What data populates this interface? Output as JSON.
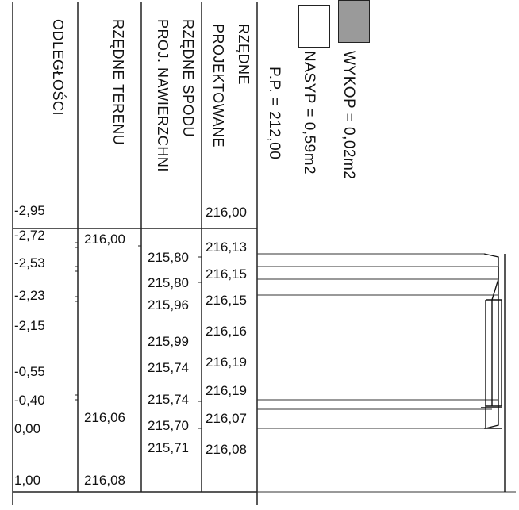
{
  "headers": {
    "odleglosci": "ODLEGŁOŚCI",
    "rzedne_terenu": "RZĘDNE TERENU",
    "spod_1": "RZĘDNE SPODU",
    "spod_2": "PROJ. NAWIERZCHNI",
    "proj_1": "RZĘDNE",
    "proj_2": "PROJEKTOWANE"
  },
  "legend": {
    "pp": "P.P. = 212,00",
    "wykop": "WYKOP = 0,02m2",
    "nasyp": "NASYP = 0,59m2",
    "wykop_color": "#9a9a9a",
    "nasyp_color": "#ffffff"
  },
  "distances": [
    "-2,95",
    "-2,72",
    "-2,53",
    "-2,23",
    "-2,15",
    "-0,55",
    "-0,40",
    "0,00",
    "1,00"
  ],
  "terrain": [
    "216,00",
    "216,06",
    "216,08"
  ],
  "spod": [
    "215,80",
    "215,80",
    "215,96",
    "215,99",
    "215,74",
    "215,74",
    "215,70",
    "215,71"
  ],
  "projected": [
    "216,00",
    "216,13",
    "216,15",
    "216,15",
    "216,16",
    "216,19",
    "216,19",
    "216,07",
    "216,08"
  ]
}
